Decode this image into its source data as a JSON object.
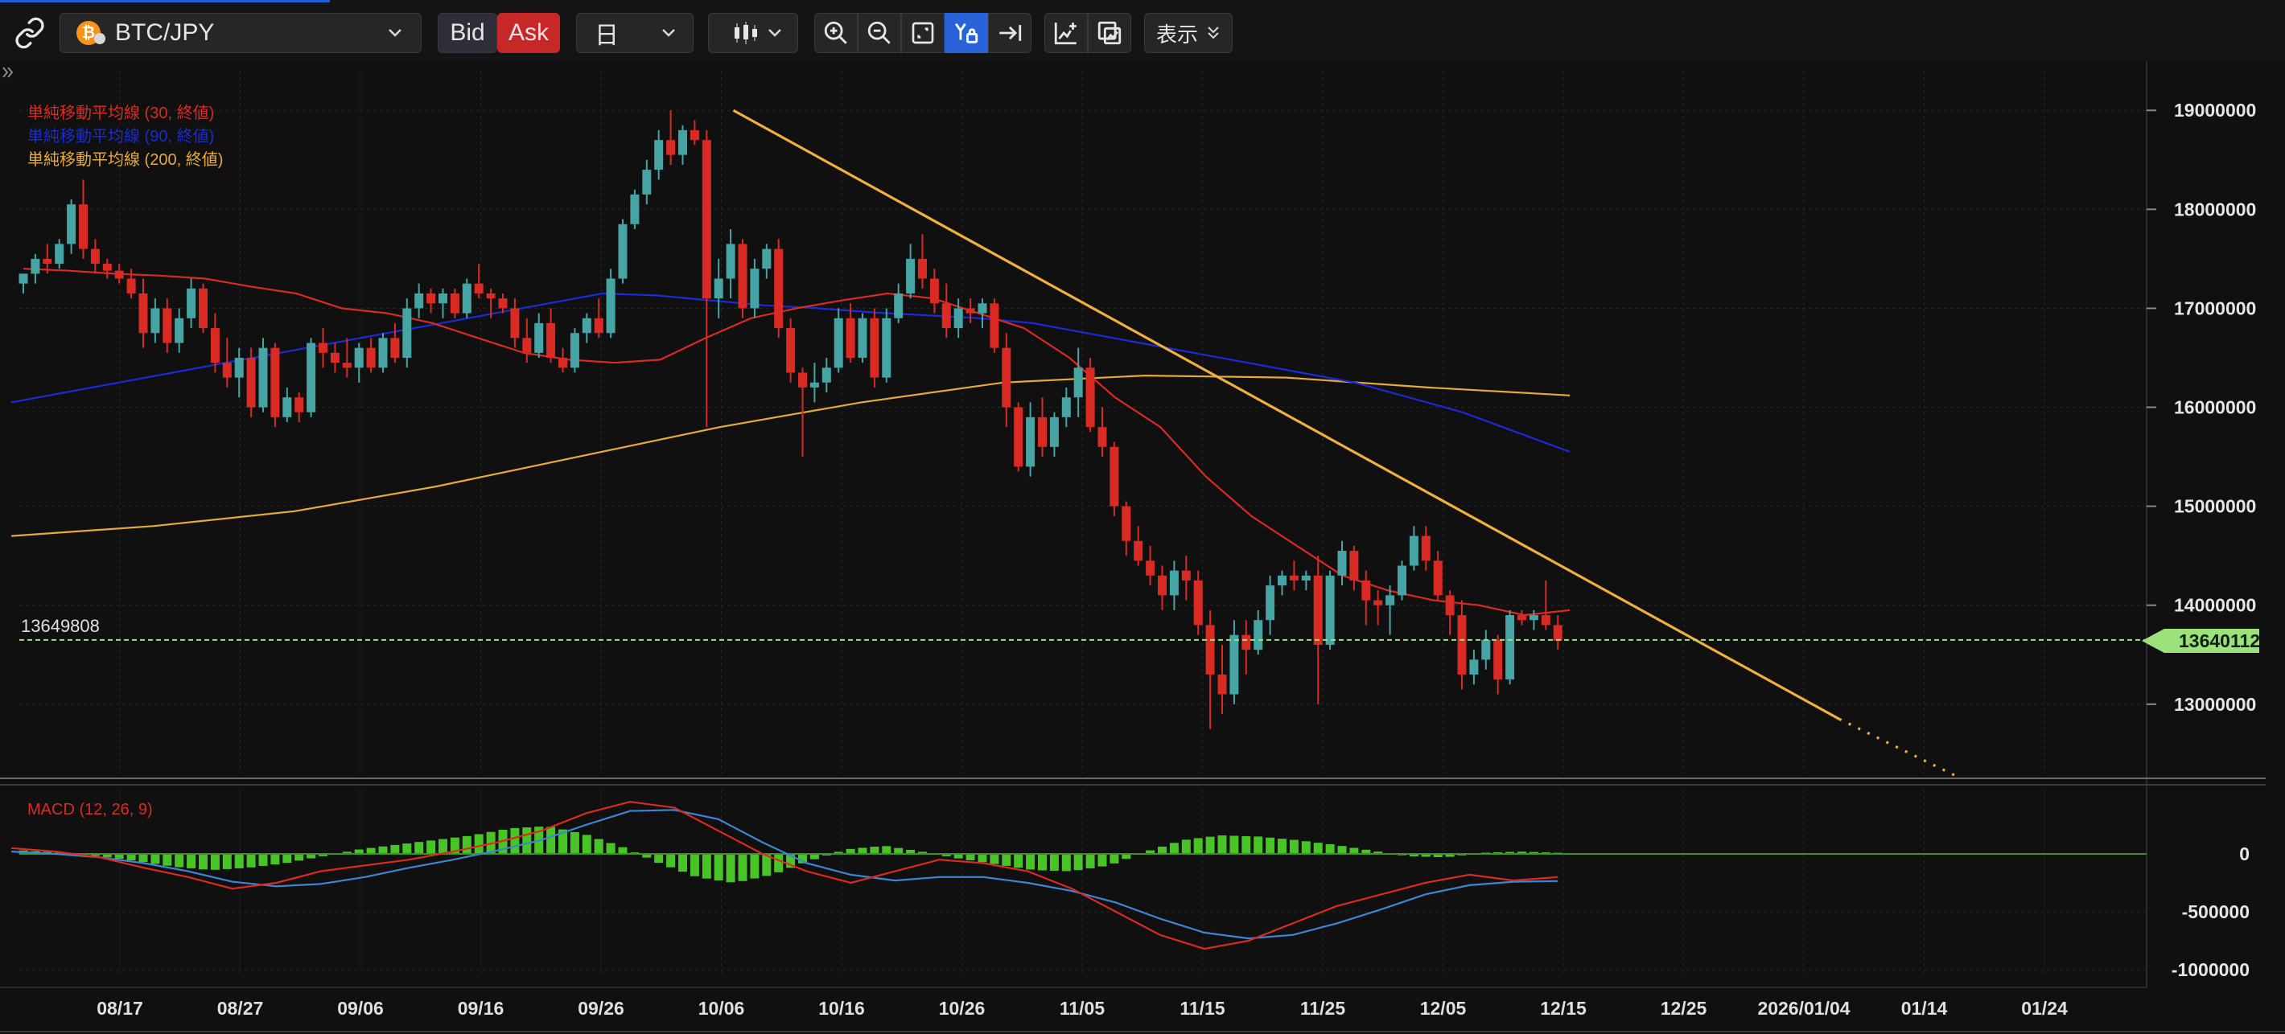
{
  "toolbar": {
    "link_icon": "link-icon",
    "symbol": "BTC/JPY",
    "symbol_icon": "bitcoin-icon",
    "bid_label": "Bid",
    "ask_label": "Ask",
    "timeframe": "日",
    "chart_type_icon": "candlestick-icon",
    "zoom_in_icon": "zoom-in-icon",
    "zoom_out_icon": "zoom-out-icon",
    "fit_icon": "fit-screen-icon",
    "y_lock_icon": "y-axis-lock-icon",
    "scroll_end_icon": "scroll-to-end-icon",
    "add_indicator_icon": "add-indicator-icon",
    "draw_icon": "draw-tools-icon",
    "display_label": "表示"
  },
  "colors": {
    "bull": "#46a4a4",
    "bear": "#d92a23",
    "ma30": "#d92a23",
    "ma90": "#1a2bd8",
    "ma200": "#e6a93a",
    "trendline": "#f0b040",
    "price_line": "#9be27a",
    "macd": "#d92a23",
    "signal": "#3d85d8",
    "hist": "#49c427",
    "zero": "#3f8f2a"
  },
  "legend": {
    "ma30": "単純移動平均線 (30, 終値)",
    "ma90": "単純移動平均線 (90, 終値)",
    "ma200": "単純移動平均線 (200, 終値)"
  },
  "macd_label": "MACD (12, 26, 9)",
  "price_line_label": "13649808",
  "price_tag": "13640112",
  "chart_data": [
    {
      "type": "candlestick",
      "title": "BTC/JPY",
      "ylim": [
        12300000,
        19400000
      ],
      "y_ticks": [
        19000000,
        18000000,
        17000000,
        16000000,
        15000000,
        14000000,
        13000000
      ],
      "y_tick_labels": [
        "19000000",
        "18000000",
        "17000000",
        "16000000",
        "15000000",
        "14000000",
        "13000000"
      ],
      "x_ticks": [
        "08/17",
        "08/27",
        "09/06",
        "09/16",
        "09/26",
        "10/06",
        "10/16",
        "10/26",
        "11/05",
        "11/15",
        "11/25",
        "12/05",
        "12/15",
        "12/25",
        "2026/01/04",
        "01/14",
        "01/24"
      ],
      "ohlc": [
        [
          17250000,
          17350000,
          17150000,
          17350000
        ],
        [
          17350000,
          17550000,
          17250000,
          17500000
        ],
        [
          17500000,
          17650000,
          17350000,
          17450000
        ],
        [
          17450000,
          17700000,
          17400000,
          17650000
        ],
        [
          17650000,
          18100000,
          17550000,
          18050000
        ],
        [
          18050000,
          18300000,
          17500000,
          17600000
        ],
        [
          17600000,
          17700000,
          17350000,
          17450000
        ],
        [
          17450000,
          17500000,
          17300000,
          17380000
        ],
        [
          17380000,
          17450000,
          17250000,
          17300000
        ],
        [
          17300000,
          17400000,
          17100000,
          17150000
        ],
        [
          17150000,
          17300000,
          16600000,
          16750000
        ],
        [
          16750000,
          17100000,
          16650000,
          17000000
        ],
        [
          17000000,
          17100000,
          16550000,
          16650000
        ],
        [
          16650000,
          17000000,
          16550000,
          16900000
        ],
        [
          16900000,
          17300000,
          16800000,
          17200000
        ],
        [
          17200000,
          17250000,
          16750000,
          16800000
        ],
        [
          16800000,
          16950000,
          16350000,
          16450000
        ],
        [
          16450000,
          16700000,
          16200000,
          16300000
        ],
        [
          16300000,
          16600000,
          16100000,
          16500000
        ],
        [
          16500000,
          16600000,
          15900000,
          16000000
        ],
        [
          16000000,
          16700000,
          15950000,
          16600000
        ],
        [
          16600000,
          16650000,
          15800000,
          15900000
        ],
        [
          15900000,
          16200000,
          15850000,
          16100000
        ],
        [
          16100000,
          16150000,
          15850000,
          15950000
        ],
        [
          15950000,
          16700000,
          15900000,
          16650000
        ],
        [
          16650000,
          16800000,
          16400000,
          16550000
        ],
        [
          16550000,
          16650000,
          16350000,
          16450000
        ],
        [
          16450000,
          16700000,
          16300000,
          16400000
        ],
        [
          16400000,
          16650000,
          16250000,
          16600000
        ],
        [
          16600000,
          16700000,
          16350000,
          16400000
        ],
        [
          16400000,
          16750000,
          16350000,
          16700000
        ],
        [
          16700000,
          16850000,
          16450000,
          16500000
        ],
        [
          16500000,
          17100000,
          16400000,
          17000000
        ],
        [
          17000000,
          17250000,
          16900000,
          17150000
        ],
        [
          17150000,
          17200000,
          16950000,
          17050000
        ],
        [
          17050000,
          17200000,
          16900000,
          17150000
        ],
        [
          17150000,
          17200000,
          16900000,
          16950000
        ],
        [
          16950000,
          17300000,
          16900000,
          17250000
        ],
        [
          17250000,
          17450000,
          17100000,
          17150000
        ],
        [
          17150000,
          17200000,
          16900000,
          17100000
        ],
        [
          17100000,
          17150000,
          16950000,
          17000000
        ],
        [
          17000000,
          17100000,
          16600000,
          16700000
        ],
        [
          16700000,
          16900000,
          16450000,
          16550000
        ],
        [
          16550000,
          16950000,
          16500000,
          16850000
        ],
        [
          16850000,
          17000000,
          16450000,
          16500000
        ],
        [
          16500000,
          16600000,
          16350000,
          16400000
        ],
        [
          16400000,
          16800000,
          16350000,
          16750000
        ],
        [
          16750000,
          16950000,
          16650000,
          16900000
        ],
        [
          16900000,
          17100000,
          16700000,
          16750000
        ],
        [
          16750000,
          17400000,
          16700000,
          17300000
        ],
        [
          17300000,
          17900000,
          17250000,
          17850000
        ],
        [
          17850000,
          18200000,
          17800000,
          18150000
        ],
        [
          18150000,
          18500000,
          18050000,
          18400000
        ],
        [
          18400000,
          18800000,
          18300000,
          18700000
        ],
        [
          18700000,
          19000000,
          18450000,
          18550000
        ],
        [
          18550000,
          18850000,
          18450000,
          18800000
        ],
        [
          18800000,
          18900000,
          18650000,
          18700000
        ],
        [
          18700000,
          18800000,
          15800000,
          17100000
        ],
        [
          17100000,
          17500000,
          16900000,
          17300000
        ],
        [
          17300000,
          17800000,
          17100000,
          17650000
        ],
        [
          17650000,
          17700000,
          16900000,
          17000000
        ],
        [
          17000000,
          17500000,
          16900000,
          17400000
        ],
        [
          17400000,
          17650000,
          17300000,
          17600000
        ],
        [
          17600000,
          17700000,
          16700000,
          16800000
        ],
        [
          16800000,
          16900000,
          16250000,
          16350000
        ],
        [
          16350000,
          16400000,
          15500000,
          16200000
        ],
        [
          16200000,
          16450000,
          16050000,
          16250000
        ],
        [
          16250000,
          16500000,
          16150000,
          16400000
        ],
        [
          16400000,
          17000000,
          16350000,
          16900000
        ],
        [
          16900000,
          17050000,
          16450000,
          16500000
        ],
        [
          16500000,
          16950000,
          16450000,
          16900000
        ],
        [
          16900000,
          17000000,
          16200000,
          16300000
        ],
        [
          16300000,
          17000000,
          16250000,
          16900000
        ],
        [
          16900000,
          17250000,
          16850000,
          17150000
        ],
        [
          17150000,
          17650000,
          17100000,
          17500000
        ],
        [
          17500000,
          17750000,
          17200000,
          17300000
        ],
        [
          17300000,
          17400000,
          16950000,
          17050000
        ],
        [
          17050000,
          17250000,
          16700000,
          16800000
        ],
        [
          16800000,
          17100000,
          16700000,
          17000000
        ],
        [
          17000000,
          17100000,
          16850000,
          16950000
        ],
        [
          16950000,
          17100000,
          16800000,
          17050000
        ],
        [
          17050000,
          17100000,
          16550000,
          16600000
        ],
        [
          16600000,
          16750000,
          15800000,
          16000000
        ],
        [
          16000000,
          16050000,
          15350000,
          15400000
        ],
        [
          15400000,
          16050000,
          15300000,
          15900000
        ],
        [
          15900000,
          16100000,
          15500000,
          15600000
        ],
        [
          15600000,
          15950000,
          15500000,
          15900000
        ],
        [
          15900000,
          16200000,
          15800000,
          16100000
        ],
        [
          16100000,
          16600000,
          15900000,
          16400000
        ],
        [
          16400000,
          16500000,
          15750000,
          15800000
        ],
        [
          15800000,
          16000000,
          15500000,
          15600000
        ],
        [
          15600000,
          15650000,
          14900000,
          15000000
        ],
        [
          15000000,
          15050000,
          14500000,
          14650000
        ],
        [
          14650000,
          14800000,
          14400000,
          14450000
        ],
        [
          14450000,
          14600000,
          14200000,
          14300000
        ],
        [
          14300000,
          14400000,
          13950000,
          14100000
        ],
        [
          14100000,
          14450000,
          13950000,
          14350000
        ],
        [
          14350000,
          14500000,
          14050000,
          14250000
        ],
        [
          14250000,
          14350000,
          13700000,
          13800000
        ],
        [
          13800000,
          13950000,
          12750000,
          13300000
        ],
        [
          13300000,
          13600000,
          12900000,
          13100000
        ],
        [
          13100000,
          13850000,
          13000000,
          13700000
        ],
        [
          13700000,
          13850000,
          13300000,
          13550000
        ],
        [
          13550000,
          13950000,
          13500000,
          13850000
        ],
        [
          13850000,
          14300000,
          13700000,
          14200000
        ],
        [
          14200000,
          14350000,
          14100000,
          14300000
        ],
        [
          14300000,
          14450000,
          14150000,
          14250000
        ],
        [
          14250000,
          14350000,
          14150000,
          14300000
        ],
        [
          14300000,
          14500000,
          13000000,
          13600000
        ],
        [
          13600000,
          14350000,
          13550000,
          14300000
        ],
        [
          14300000,
          14650000,
          14200000,
          14550000
        ],
        [
          14550000,
          14600000,
          14150000,
          14250000
        ],
        [
          14250000,
          14350000,
          13800000,
          14050000
        ],
        [
          14050000,
          14150000,
          13800000,
          14000000
        ],
        [
          14000000,
          14200000,
          13700000,
          14100000
        ],
        [
          14100000,
          14450000,
          14050000,
          14400000
        ],
        [
          14400000,
          14800000,
          14350000,
          14700000
        ],
        [
          14700000,
          14800000,
          14350000,
          14450000
        ],
        [
          14450000,
          14550000,
          14050000,
          14100000
        ],
        [
          14100000,
          14150000,
          13700000,
          13900000
        ],
        [
          13900000,
          14050000,
          13150000,
          13300000
        ],
        [
          13300000,
          13550000,
          13200000,
          13450000
        ],
        [
          13450000,
          13750000,
          13350000,
          13650000
        ],
        [
          13650000,
          13700000,
          13100000,
          13250000
        ],
        [
          13250000,
          13950000,
          13200000,
          13900000
        ],
        [
          13900000,
          13950000,
          13800000,
          13850000
        ],
        [
          13850000,
          13950000,
          13750000,
          13900000
        ],
        [
          13900000,
          14250000,
          13750000,
          13800000
        ],
        [
          13800000,
          13900000,
          13550000,
          13640112
        ]
      ],
      "ma30": [
        17400000,
        17380000,
        17350000,
        17330000,
        17300000,
        17220000,
        17150000,
        17000000,
        16950000,
        16850000,
        16700000,
        16550000,
        16480000,
        16450000,
        16480000,
        16700000,
        16900000,
        17000000,
        17080000,
        17150000,
        17100000,
        16950000,
        16800000,
        16500000,
        16100000,
        15800000,
        15300000,
        14900000,
        14600000,
        14300000,
        14150000,
        14050000,
        14000000,
        13900000,
        13950000
      ],
      "ma90": [
        16050000,
        16150000,
        16250000,
        16350000,
        16450000,
        16550000,
        16650000,
        16750000,
        16850000,
        16950000,
        17050000,
        17150000,
        17130000,
        17080000,
        17030000,
        17000000,
        16960000,
        16930000,
        16900000,
        16850000,
        16750000,
        16650000,
        16550000,
        16450000,
        16350000,
        16250000,
        16100000,
        15950000,
        15750000,
        15550000
      ],
      "ma200": [
        14700000,
        14800000,
        14950000,
        15200000,
        15500000,
        15800000,
        16050000,
        16250000,
        16320000,
        16300000,
        16200000,
        16120000
      ],
      "trendline": {
        "start": [
          "10/07",
          19000000
        ],
        "end": [
          "01/06",
          12850000
        ],
        "dotted_until": [
          "01/17",
          12250000
        ]
      },
      "current_price": 13640112,
      "price_line": 13649808
    },
    {
      "type": "macd",
      "title": "MACD (12, 26, 9)",
      "ylim": [
        -1000000,
        500000
      ],
      "y_ticks": [
        0,
        -500000,
        -1000000
      ],
      "y_tick_labels": [
        "0",
        "-500000",
        "-1000000"
      ],
      "macd": [
        50000,
        20000,
        -30000,
        -120000,
        -200000,
        -300000,
        -250000,
        -150000,
        -100000,
        -50000,
        20000,
        100000,
        200000,
        350000,
        450000,
        400000,
        200000,
        0,
        -150000,
        -250000,
        -150000,
        -50000,
        -80000,
        -150000,
        -300000,
        -500000,
        -700000,
        -820000,
        -750000,
        -600000,
        -450000,
        -350000,
        -250000,
        -180000,
        -230000,
        -200000
      ],
      "signal": [
        20000,
        0,
        -30000,
        -80000,
        -150000,
        -240000,
        -280000,
        -260000,
        -200000,
        -120000,
        -50000,
        30000,
        120000,
        250000,
        370000,
        380000,
        300000,
        100000,
        -80000,
        -180000,
        -230000,
        -200000,
        -200000,
        -250000,
        -320000,
        -420000,
        -560000,
        -680000,
        -730000,
        -700000,
        -600000,
        -480000,
        -350000,
        -270000,
        -240000,
        -235000
      ],
      "histogram": [
        30000,
        10000,
        -20000,
        -60000,
        -110000,
        -140000,
        -120000,
        -80000,
        -20000,
        40000,
        80000,
        120000,
        160000,
        220000,
        240000,
        170000,
        60000,
        -80000,
        -200000,
        -250000,
        -180000,
        -60000,
        40000,
        70000,
        20000,
        -40000,
        -90000,
        -140000,
        -150000,
        -100000,
        20000,
        120000,
        160000,
        150000,
        120000,
        80000,
        30000,
        -20000,
        -30000,
        10000,
        20000,
        10000
      ]
    }
  ]
}
